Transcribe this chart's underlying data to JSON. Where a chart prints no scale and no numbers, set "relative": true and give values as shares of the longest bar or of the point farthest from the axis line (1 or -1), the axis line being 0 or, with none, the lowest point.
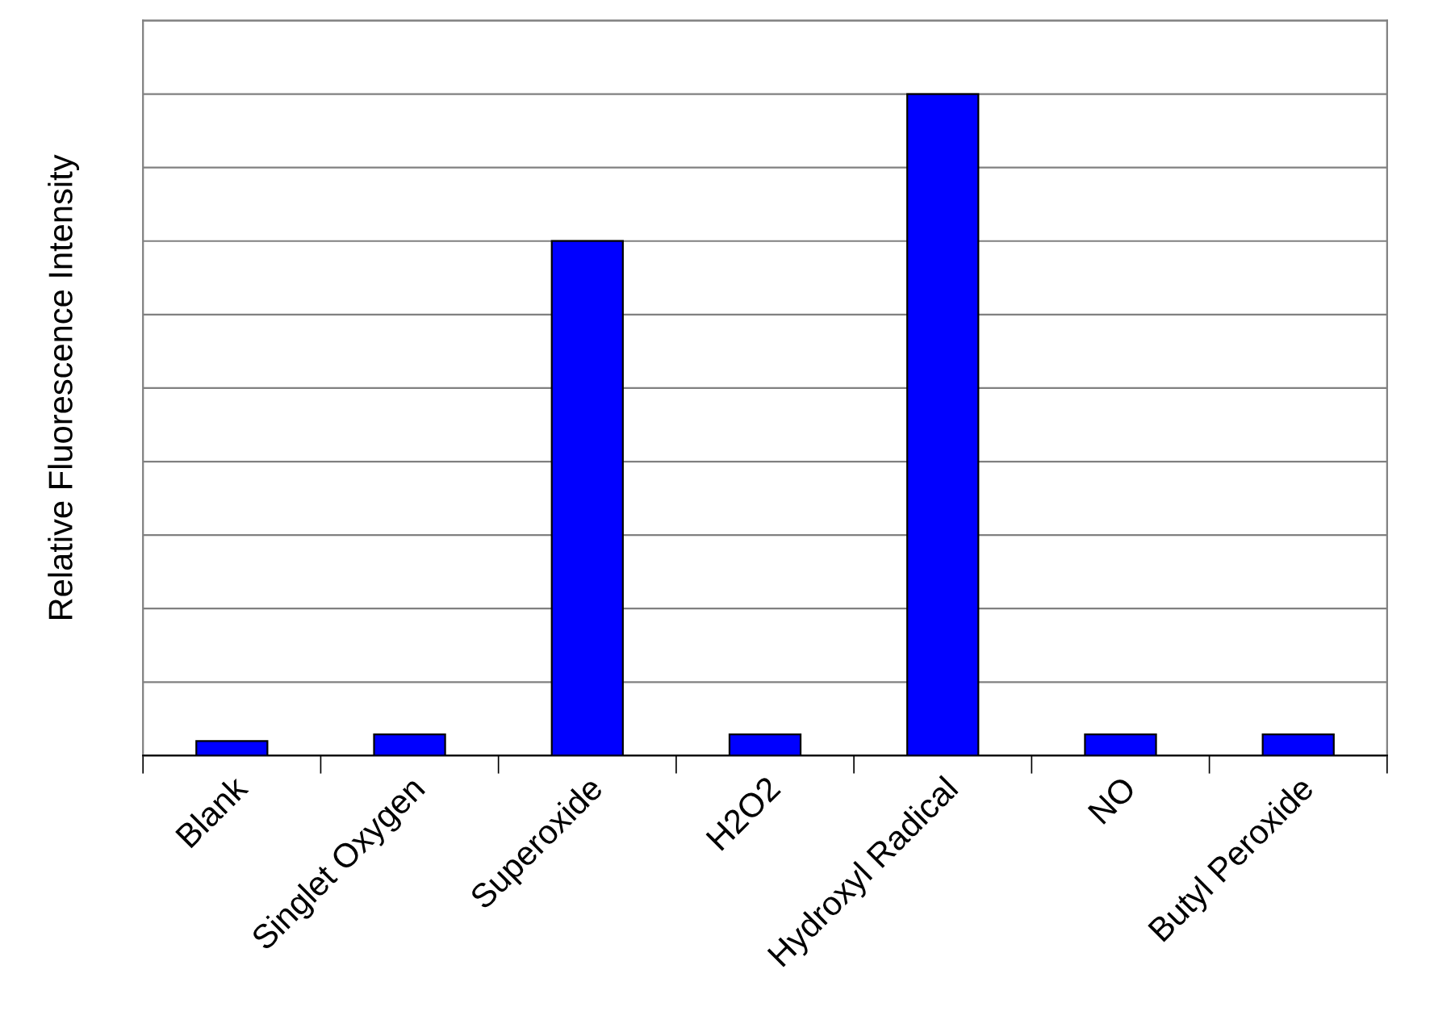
{
  "chart_data": {
    "type": "bar",
    "ylabel": "Relative Fluorescence Intensity",
    "relative": true,
    "categories": [
      "Blank",
      "Singlet Oxygen",
      "Superoxide",
      "H2O2",
      "Hydroxyl Radical",
      "NO",
      "Butyl Peroxide"
    ],
    "values": [
      0.022,
      0.032,
      0.778,
      0.032,
      1,
      0.032,
      0.032
    ],
    "color": "#0000ff",
    "grid": "y",
    "tick_labels": "x",
    "legend": false
  }
}
